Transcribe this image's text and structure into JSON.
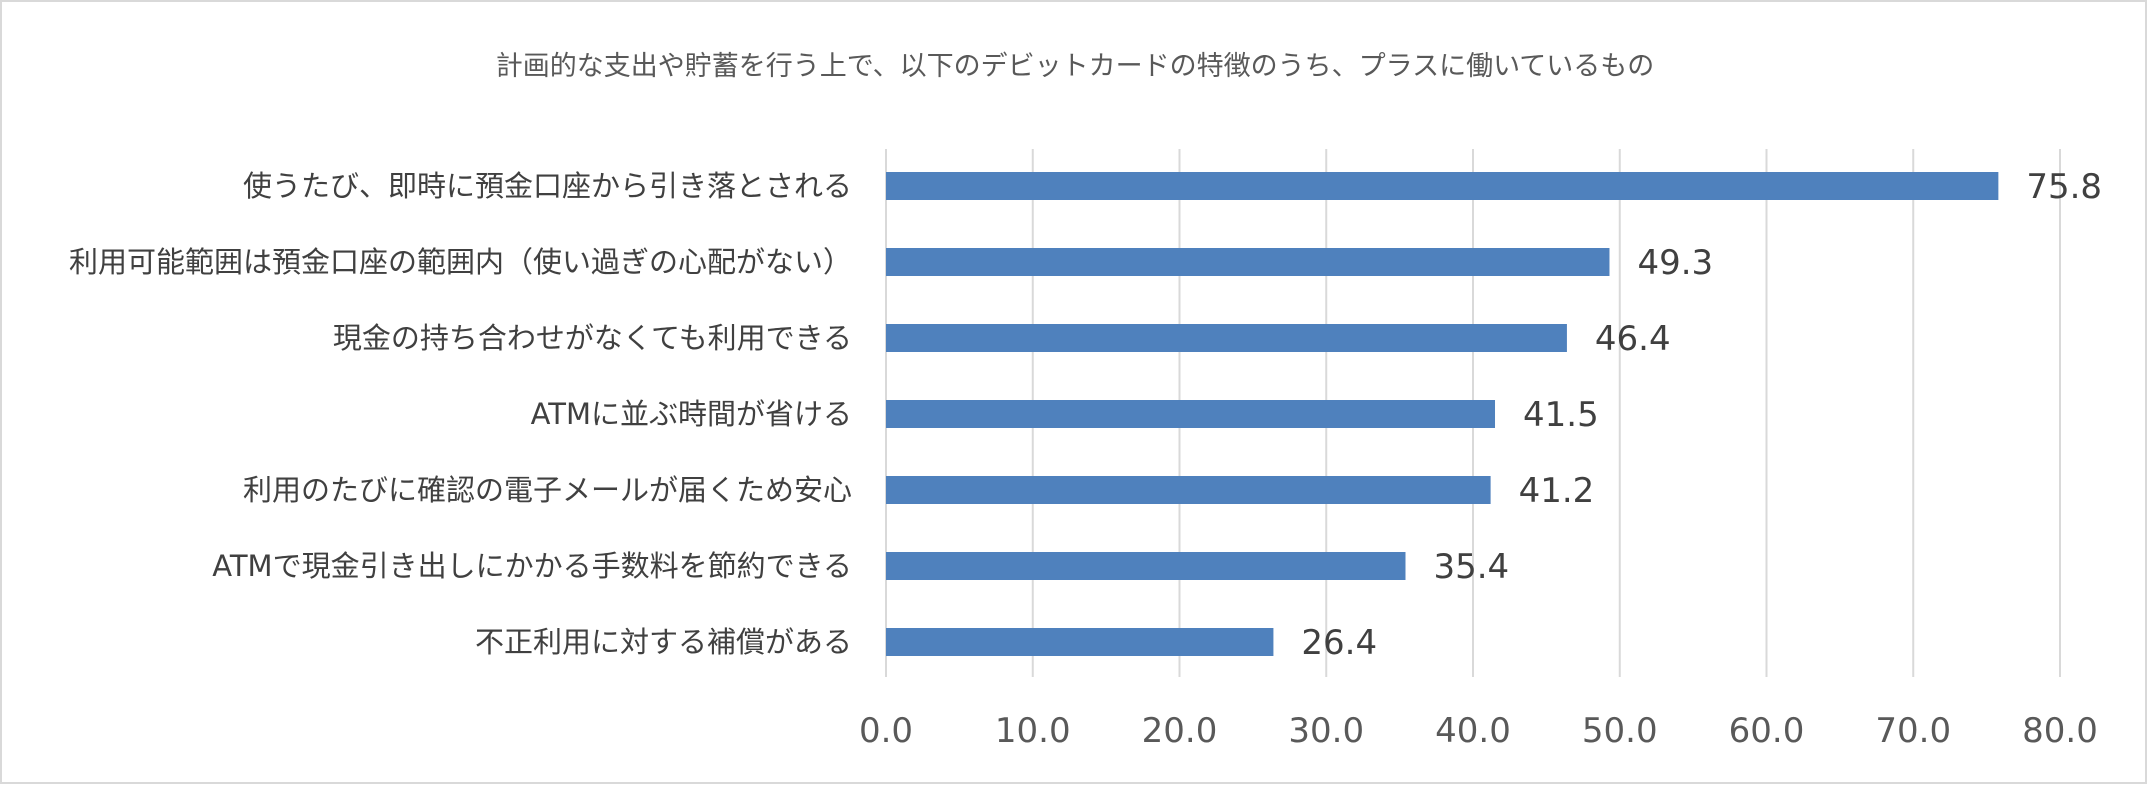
{
  "chart_data": {
    "type": "bar",
    "orientation": "horizontal",
    "title": "計画的な支出や貯蓄を行う上で、以下のデビットカードの特徴のうち、プラスに働いているもの",
    "categories": [
      "使うたび、即時に預金口座から引き落とされる",
      "利用可能範囲は預金口座の範囲内（使い過ぎの心配がない）",
      "現金の持ち合わせがなくても利用できる",
      "ATMに並ぶ時間が省ける",
      "利用のたびに確認の電子メールが届くため安心",
      "ATMで現金引き出しにかかる手数料を節約できる",
      "不正利用に対する補償がある"
    ],
    "values": [
      75.8,
      49.3,
      46.4,
      41.5,
      41.2,
      35.4,
      26.4
    ],
    "value_labels": [
      "75.8",
      "49.3",
      "46.4",
      "41.5",
      "41.2",
      "35.4",
      "26.4"
    ],
    "xlim": [
      0,
      80
    ],
    "x_ticks": [
      "0.0",
      "10.0",
      "20.0",
      "30.0",
      "40.0",
      "50.0",
      "60.0",
      "70.0",
      "80.0"
    ],
    "grid": true,
    "legend": false,
    "bar_color": "#4f81bd",
    "grid_color": "#d9d9d9"
  }
}
